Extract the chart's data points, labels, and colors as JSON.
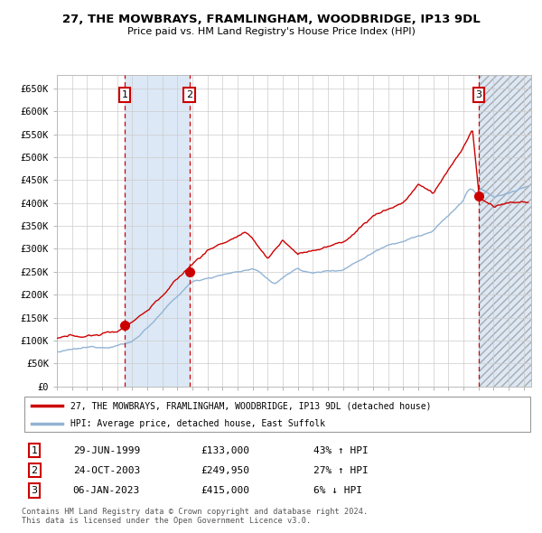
{
  "title": "27, THE MOWBRAYS, FRAMLINGHAM, WOODBRIDGE, IP13 9DL",
  "subtitle": "Price paid vs. HM Land Registry's House Price Index (HPI)",
  "ylim": [
    0,
    680000
  ],
  "yticks": [
    0,
    50000,
    100000,
    150000,
    200000,
    250000,
    300000,
    350000,
    400000,
    450000,
    500000,
    550000,
    600000,
    650000
  ],
  "ytick_labels": [
    "£0",
    "£50K",
    "£100K",
    "£150K",
    "£200K",
    "£250K",
    "£300K",
    "£350K",
    "£400K",
    "£450K",
    "£500K",
    "£550K",
    "£600K",
    "£650K"
  ],
  "x_start_year": 1995,
  "x_end_year": 2026,
  "background_color": "#ffffff",
  "plot_bg_color": "#ffffff",
  "grid_color": "#cccccc",
  "hpi_color": "#92b4d4",
  "price_color": "#cc0000",
  "sale_marker_color": "#cc0000",
  "vline_color": "#cc0000",
  "shade_color": "#dce8f5",
  "legend_line_red": "#cc0000",
  "legend_line_blue": "#92b4d4",
  "transactions": [
    {
      "label": "1",
      "date_year": 1999.49,
      "price": 133000,
      "pct": "43%",
      "direction": "↑",
      "date_str": "29-JUN-1999"
    },
    {
      "label": "2",
      "date_year": 2003.81,
      "price": 249950,
      "pct": "27%",
      "direction": "↑",
      "date_str": "24-OCT-2003"
    },
    {
      "label": "3",
      "date_year": 2023.02,
      "price": 415000,
      "pct": "6%",
      "direction": "↓",
      "date_str": "06-JAN-2023"
    }
  ],
  "footer_text": "Contains HM Land Registry data © Crown copyright and database right 2024.\nThis data is licensed under the Open Government Licence v3.0.",
  "legend_entries": [
    "27, THE MOWBRAYS, FRAMLINGHAM, WOODBRIDGE, IP13 9DL (detached house)",
    "HPI: Average price, detached house, East Suffolk"
  ]
}
